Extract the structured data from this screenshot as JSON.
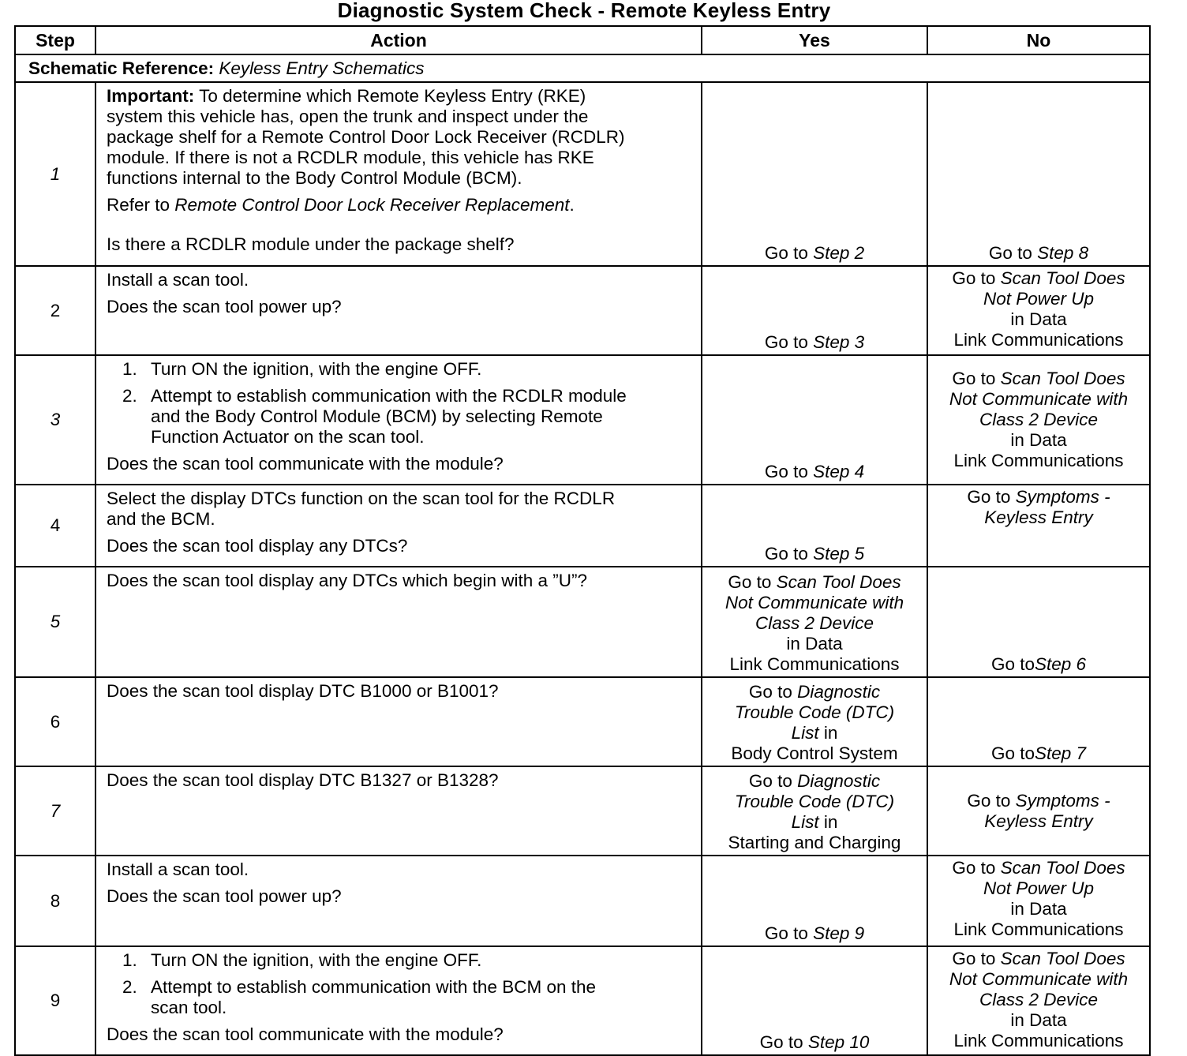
{
  "title": "Diagnostic System Check - Remote Keyless Entry",
  "headers": {
    "step": "Step",
    "action": "Action",
    "yes": "Yes",
    "no": "No"
  },
  "schematic": {
    "label": "Schematic Reference:",
    "value": "Keyless Entry Schematics"
  },
  "rows": [
    {
      "step": "1",
      "action": [
        {
          "lines": [
            [
              {
                "t": "Important:",
                "s": "b"
              },
              {
                "t": " To determine which Remote Keyless Entry (RKE)"
              }
            ],
            [
              {
                "t": "system this vehicle has, open the trunk and inspect under the"
              }
            ],
            [
              {
                "t": "package shelf for a Remote Control Door Lock Receiver (RCDLR)"
              }
            ],
            [
              {
                "t": "module. If there is not a RCDLR module, this vehicle has RKE"
              }
            ],
            [
              {
                "t": "functions internal to the Body Control Module (BCM)."
              }
            ]
          ]
        },
        {
          "lines": [
            [
              {
                "t": "Refer to "
              },
              {
                "t": "Remote Control Door Lock Receiver Replacement",
                "s": "i"
              },
              {
                "t": "."
              }
            ]
          ]
        },
        {
          "lines": [
            [
              {
                "t": "Is there a RCDLR module under the package shelf?"
              }
            ]
          ]
        }
      ],
      "yes": [
        [
          {
            "t": "Go to "
          },
          {
            "t": "Step 2",
            "s": "i"
          }
        ]
      ],
      "no": [
        [
          {
            "t": "Go to "
          },
          {
            "t": "Step 8",
            "s": "i"
          }
        ]
      ]
    },
    {
      "step": "2",
      "action": [
        {
          "lines": [
            [
              {
                "t": "Install a scan tool."
              }
            ]
          ]
        },
        {
          "lines": [
            [
              {
                "t": "Does the scan tool power up?"
              }
            ]
          ]
        }
      ],
      "yes": [
        [
          {
            "t": "Go to "
          },
          {
            "t": "Step 3",
            "s": "i"
          }
        ]
      ],
      "no": [
        [
          {
            "t": "Go to "
          },
          {
            "t": "Scan Tool Does",
            "s": "i"
          }
        ],
        [
          {
            "t": "Not Power Up",
            "s": "i"
          }
        ],
        [
          {
            "t": "in Data"
          }
        ],
        [
          {
            "t": "Link Communications"
          }
        ]
      ]
    },
    {
      "step": "3",
      "action": [
        {
          "num": "1.",
          "lines": [
            [
              {
                "t": "Turn ON the ignition, with the engine OFF."
              }
            ]
          ]
        },
        {
          "num": "2.",
          "lines": [
            [
              {
                "t": "Attempt to establish communication with the RCDLR module"
              }
            ],
            [
              {
                "t": "and the Body Control Module (BCM) by selecting Remote"
              }
            ],
            [
              {
                "t": "Function Actuator on the scan tool."
              }
            ]
          ]
        },
        {
          "lines": [
            [
              {
                "t": "Does the scan tool communicate with the module?"
              }
            ]
          ]
        }
      ],
      "yes": [
        [
          {
            "t": "Go to "
          },
          {
            "t": "Step 4",
            "s": "i"
          }
        ]
      ],
      "no": [
        [
          {
            "t": "Go to "
          },
          {
            "t": "Scan Tool Does",
            "s": "i"
          }
        ],
        [
          {
            "t": "Not Communicate with",
            "s": "i"
          }
        ],
        [
          {
            "t": "Class 2 Device",
            "s": "i"
          }
        ],
        [
          {
            "t": "in Data"
          }
        ],
        [
          {
            "t": "Link Communications"
          }
        ]
      ]
    },
    {
      "step": "4",
      "action": [
        {
          "lines": [
            [
              {
                "t": "Select the display DTCs function on the scan tool for the RCDLR"
              }
            ],
            [
              {
                "t": "and the BCM."
              }
            ]
          ]
        },
        {
          "lines": [
            [
              {
                "t": "Does the scan tool display any DTCs?"
              }
            ]
          ]
        }
      ],
      "yes": [
        [
          {
            "t": "Go to "
          },
          {
            "t": "Step 5",
            "s": "i"
          }
        ]
      ],
      "no": [
        [
          {
            "t": "Go to "
          },
          {
            "t": "Symptoms -",
            "s": "i"
          }
        ],
        [
          {
            "t": "Keyless Entry",
            "s": "i"
          }
        ]
      ]
    },
    {
      "step": "5",
      "action": [
        {
          "lines": [
            [
              {
                "t": "Does the scan tool display any DTCs which begin with a ”U”?"
              }
            ]
          ]
        }
      ],
      "yes": [
        [
          {
            "t": "Go to "
          },
          {
            "t": "Scan Tool Does",
            "s": "i"
          }
        ],
        [
          {
            "t": "Not Communicate with",
            "s": "i"
          }
        ],
        [
          {
            "t": "Class 2 Device",
            "s": "i"
          }
        ],
        [
          {
            "t": "in Data"
          }
        ],
        [
          {
            "t": "Link Communications"
          }
        ]
      ],
      "no": [
        [
          {
            "t": "Go to"
          },
          {
            "t": "Step 6",
            "s": "i"
          }
        ]
      ]
    },
    {
      "step": "6",
      "action": [
        {
          "lines": [
            [
              {
                "t": "Does the scan tool display DTC B1000 or B1001?"
              }
            ]
          ]
        }
      ],
      "yes": [
        [
          {
            "t": "Go to "
          },
          {
            "t": "Diagnostic",
            "s": "i"
          }
        ],
        [
          {
            "t": "Trouble Code (DTC)",
            "s": "i"
          }
        ],
        [
          {
            "t": "List",
            "s": "i"
          },
          {
            "t": "  in"
          }
        ],
        [
          {
            "t": "Body Control System"
          }
        ]
      ],
      "no": [
        [
          {
            "t": "Go to"
          },
          {
            "t": "Step 7",
            "s": "i"
          }
        ]
      ]
    },
    {
      "step": "7",
      "action": [
        {
          "lines": [
            [
              {
                "t": "Does the scan tool display DTC B1327 or B1328?"
              }
            ]
          ]
        }
      ],
      "yes": [
        [
          {
            "t": "Go to "
          },
          {
            "t": "Diagnostic",
            "s": "i"
          }
        ],
        [
          {
            "t": "Trouble Code (DTC)",
            "s": "i"
          }
        ],
        [
          {
            "t": "List",
            "s": "i"
          },
          {
            "t": "  in"
          }
        ],
        [
          {
            "t": "Starting and Charging"
          }
        ]
      ],
      "no": [
        [
          {
            "t": "Go to "
          },
          {
            "t": "Symptoms -",
            "s": "i"
          }
        ],
        [
          {
            "t": "Keyless Entry",
            "s": "i"
          }
        ]
      ]
    },
    {
      "step": "8",
      "action": [
        {
          "lines": [
            [
              {
                "t": "Install a scan tool."
              }
            ]
          ]
        },
        {
          "lines": [
            [
              {
                "t": "Does the scan tool power up?"
              }
            ]
          ]
        }
      ],
      "yes": [
        [
          {
            "t": "Go to "
          },
          {
            "t": "Step 9",
            "s": "i"
          }
        ]
      ],
      "no": [
        [
          {
            "t": "Go to "
          },
          {
            "t": "Scan Tool Does",
            "s": "i"
          }
        ],
        [
          {
            "t": "Not Power Up",
            "s": "i"
          }
        ],
        [
          {
            "t": "in Data"
          }
        ],
        [
          {
            "t": "Link Communications"
          }
        ]
      ]
    },
    {
      "step": "9",
      "action": [
        {
          "num": "1.",
          "lines": [
            [
              {
                "t": "Turn ON the ignition, with the engine OFF."
              }
            ]
          ]
        },
        {
          "num": "2.",
          "lines": [
            [
              {
                "t": "Attempt to establish communication with the BCM on the"
              }
            ],
            [
              {
                "t": "scan tool."
              }
            ]
          ]
        },
        {
          "lines": [
            [
              {
                "t": "Does the scan tool communicate with the module?"
              }
            ]
          ]
        }
      ],
      "yes": [
        [
          {
            "t": "Go to "
          },
          {
            "t": "Step 10",
            "s": "i"
          }
        ]
      ],
      "no": [
        [
          {
            "t": "Go to "
          },
          {
            "t": "Scan Tool Does",
            "s": "i"
          }
        ],
        [
          {
            "t": "Not Communicate with",
            "s": "i"
          }
        ],
        [
          {
            "t": "Class 2 Device",
            "s": "i"
          }
        ],
        [
          {
            "t": "in Data"
          }
        ],
        [
          {
            "t": "Link Communications"
          }
        ]
      ]
    }
  ]
}
